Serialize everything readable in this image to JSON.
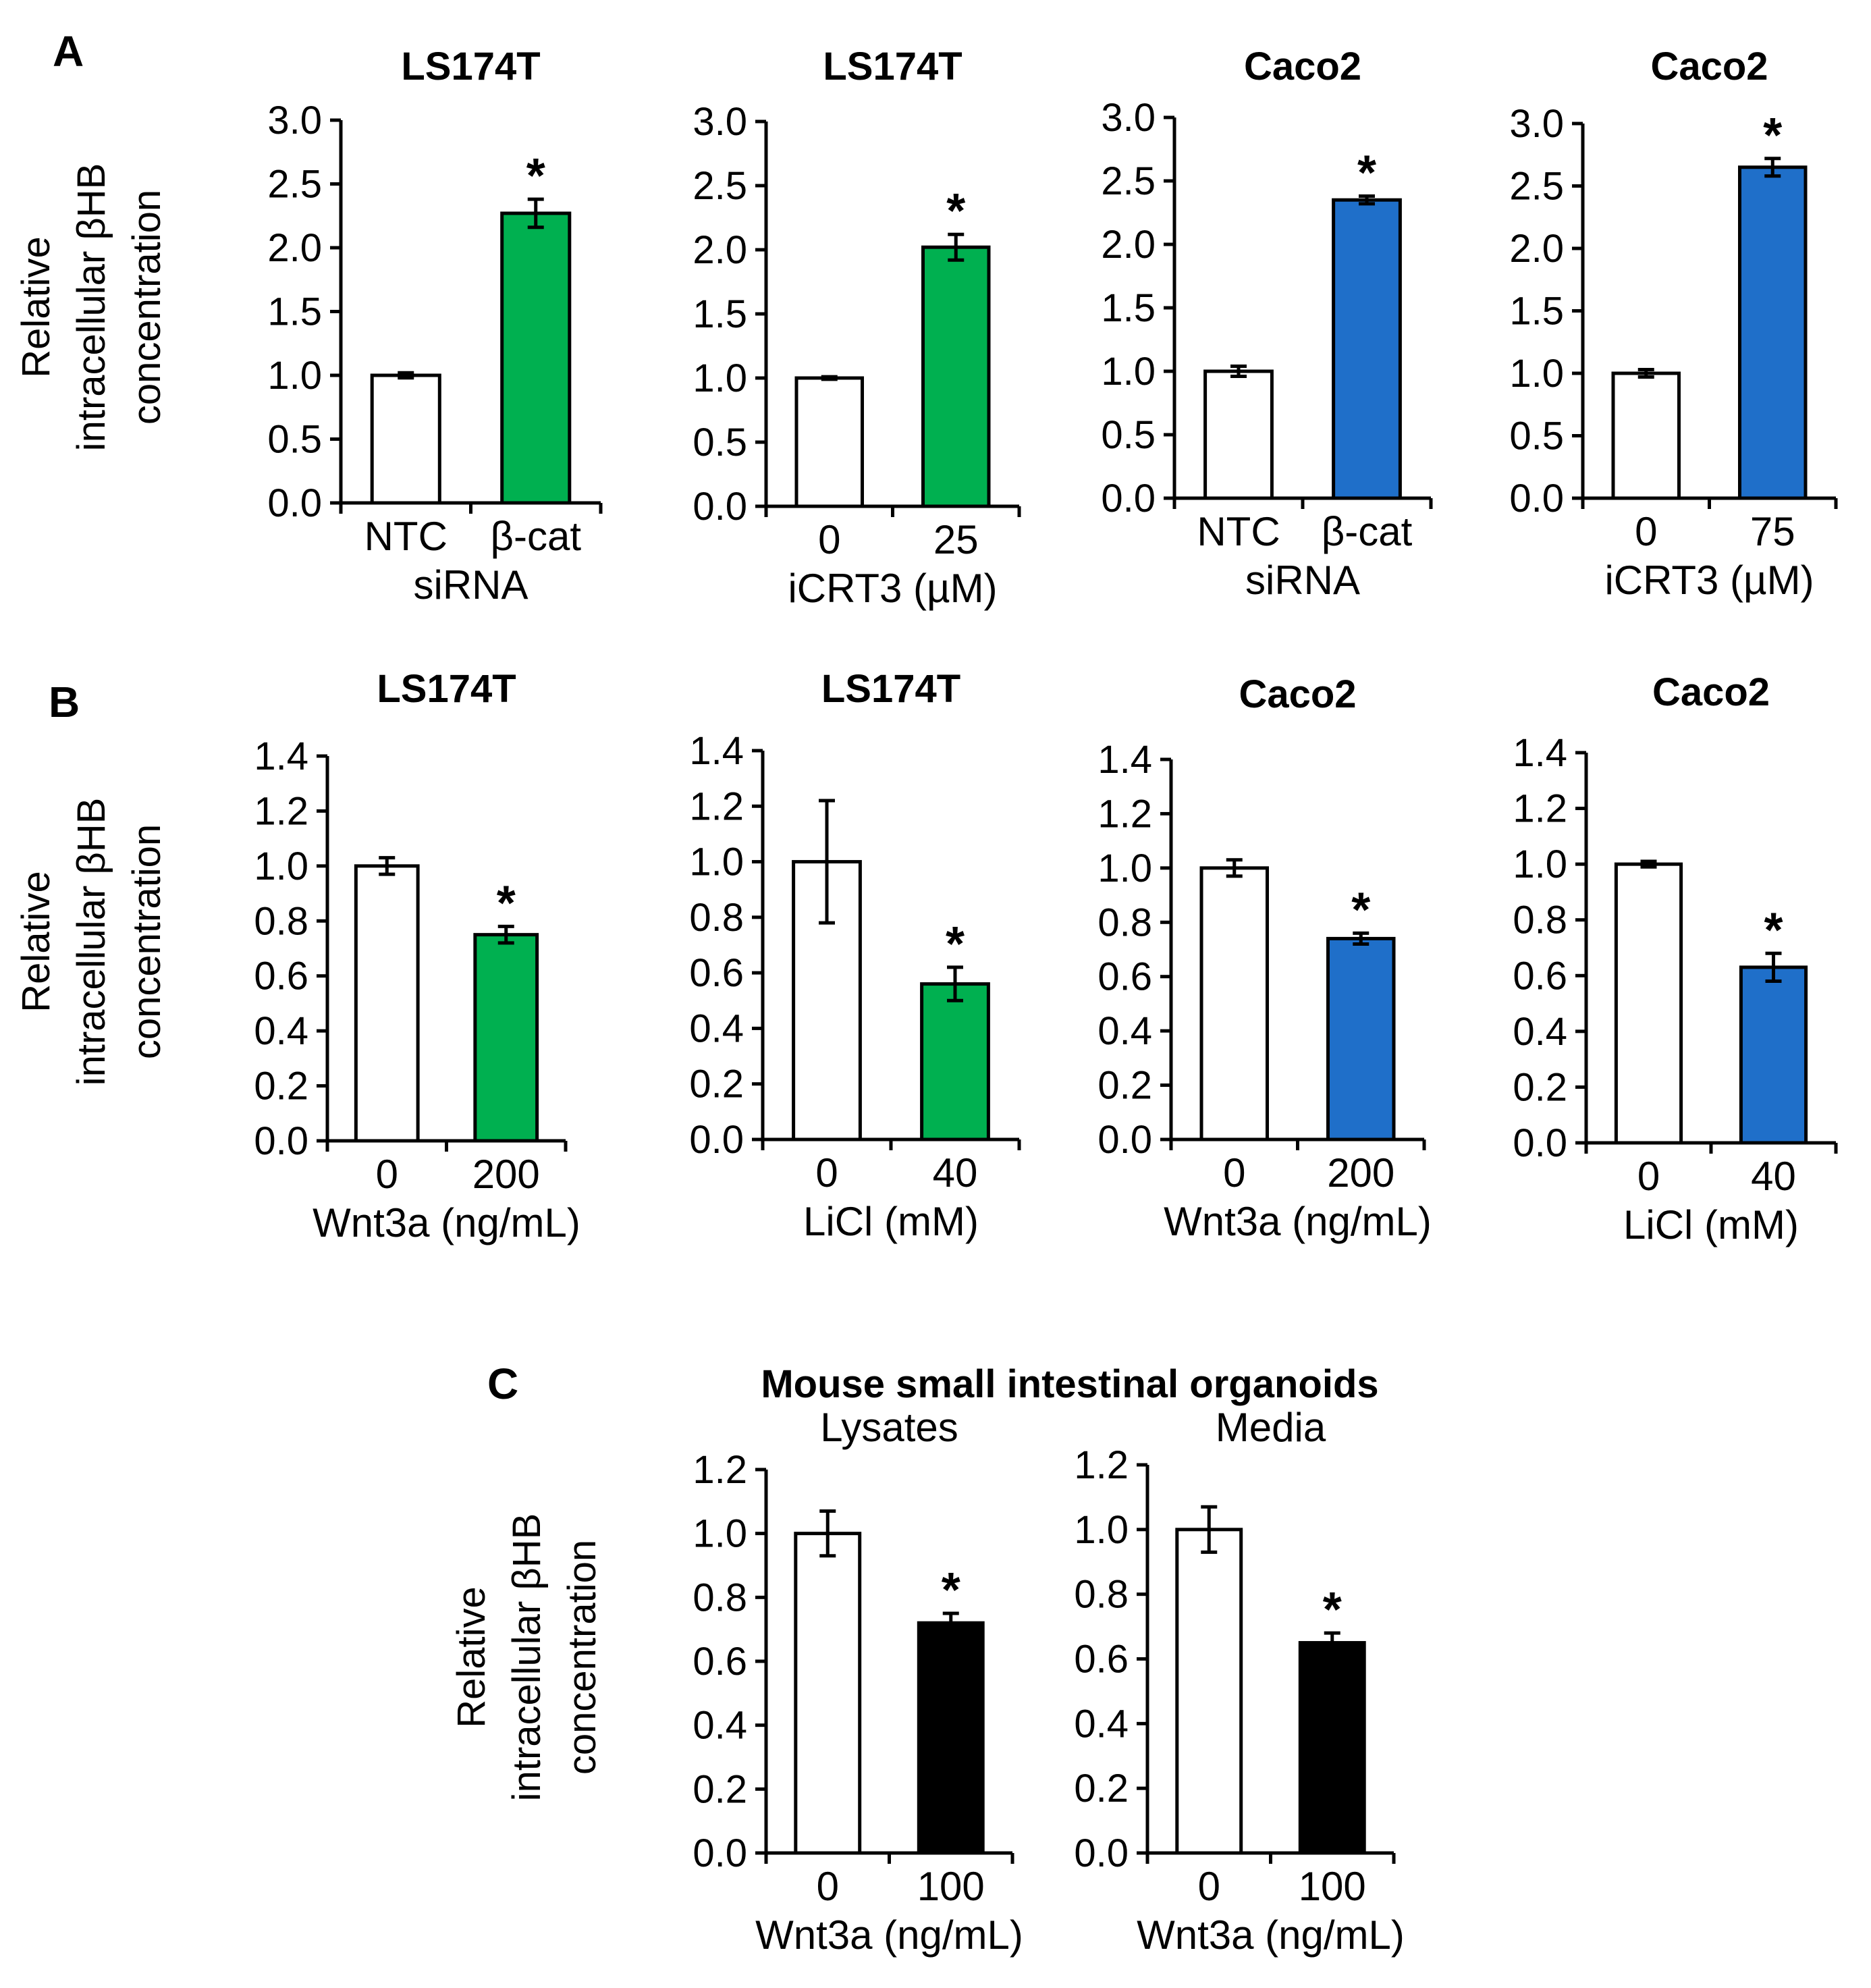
{
  "panels": [
    "A",
    "B",
    "C"
  ],
  "row_c_title": "Mouse small intestinal organoids",
  "colors": {
    "open": "#ffffff",
    "green": "#00b050",
    "blue": "#1f6fc9",
    "black": "#000000"
  },
  "ylabel": [
    "Relative",
    "intracellular βHB",
    "concentration"
  ],
  "chart_data": [
    {
      "id": "A1",
      "type": "bar",
      "title": "LS174T",
      "categories": [
        "NTC",
        "β-cat"
      ],
      "xlabel": "siRNA",
      "values": [
        1.0,
        2.27
      ],
      "errors": [
        0.02,
        0.11
      ],
      "significant": [
        false,
        true
      ],
      "colors": [
        "#ffffff",
        "#00b050"
      ],
      "ylim": [
        0,
        3.0
      ],
      "yticks": [
        "0.0",
        "0.5",
        "1.0",
        "1.5",
        "2.0",
        "2.5",
        "3.0"
      ]
    },
    {
      "id": "A2",
      "type": "bar",
      "title": "LS174T",
      "categories": [
        "0",
        "25"
      ],
      "xlabel": "iCRT3 (µM)",
      "values": [
        1.0,
        2.02
      ],
      "errors": [
        0.01,
        0.1
      ],
      "significant": [
        false,
        true
      ],
      "colors": [
        "#ffffff",
        "#00b050"
      ],
      "ylim": [
        0,
        3.0
      ],
      "yticks": [
        "0.0",
        "0.5",
        "1.0",
        "1.5",
        "2.0",
        "2.5",
        "3.0"
      ]
    },
    {
      "id": "A3",
      "type": "bar",
      "title": "Caco2",
      "categories": [
        "NTC",
        "β-cat"
      ],
      "xlabel": "siRNA",
      "values": [
        1.0,
        2.35
      ],
      "errors": [
        0.04,
        0.03
      ],
      "significant": [
        false,
        true
      ],
      "colors": [
        "#ffffff",
        "#1f6fc9"
      ],
      "ylim": [
        0,
        3.0
      ],
      "yticks": [
        "0.0",
        "0.5",
        "1.0",
        "1.5",
        "2.0",
        "2.5",
        "3.0"
      ]
    },
    {
      "id": "A4",
      "type": "bar",
      "title": "Caco2",
      "categories": [
        "0",
        "75"
      ],
      "xlabel": "iCRT3 (µM)",
      "values": [
        1.0,
        2.65
      ],
      "errors": [
        0.03,
        0.07
      ],
      "significant": [
        false,
        true
      ],
      "colors": [
        "#ffffff",
        "#1f6fc9"
      ],
      "ylim": [
        0,
        3.0
      ],
      "yticks": [
        "0.0",
        "0.5",
        "1.0",
        "1.5",
        "2.0",
        "2.5",
        "3.0"
      ]
    },
    {
      "id": "B1",
      "type": "bar",
      "title": "LS174T",
      "categories": [
        "0",
        "200"
      ],
      "xlabel": "Wnt3a (ng/mL)",
      "values": [
        1.0,
        0.75
      ],
      "errors": [
        0.03,
        0.03
      ],
      "significant": [
        false,
        true
      ],
      "colors": [
        "#ffffff",
        "#00b050"
      ],
      "ylim": [
        0,
        1.4
      ],
      "yticks": [
        "0.0",
        "0.2",
        "0.4",
        "0.6",
        "0.8",
        "1.0",
        "1.2",
        "1.4"
      ]
    },
    {
      "id": "B2",
      "type": "bar",
      "title": "LS174T",
      "categories": [
        "0",
        "40"
      ],
      "xlabel": "LiCl (mM)",
      "values": [
        1.0,
        0.56
      ],
      "errors": [
        0.22,
        0.06
      ],
      "significant": [
        false,
        true
      ],
      "colors": [
        "#ffffff",
        "#00b050"
      ],
      "ylim": [
        0,
        1.4
      ],
      "yticks": [
        "0.0",
        "0.2",
        "0.4",
        "0.6",
        "0.8",
        "1.0",
        "1.2",
        "1.4"
      ]
    },
    {
      "id": "B3",
      "type": "bar",
      "title": "Caco2",
      "categories": [
        "0",
        "200"
      ],
      "xlabel": "Wnt3a (ng/mL)",
      "values": [
        1.0,
        0.74
      ],
      "errors": [
        0.03,
        0.02
      ],
      "significant": [
        false,
        true
      ],
      "colors": [
        "#ffffff",
        "#1f6fc9"
      ],
      "ylim": [
        0,
        1.4
      ],
      "yticks": [
        "0.0",
        "0.2",
        "0.4",
        "0.6",
        "0.8",
        "1.0",
        "1.2",
        "1.4"
      ]
    },
    {
      "id": "B4",
      "type": "bar",
      "title": "Caco2",
      "categories": [
        "0",
        "40"
      ],
      "xlabel": "LiCl (mM)",
      "values": [
        1.0,
        0.63
      ],
      "errors": [
        0.01,
        0.05
      ],
      "significant": [
        false,
        true
      ],
      "colors": [
        "#ffffff",
        "#1f6fc9"
      ],
      "ylim": [
        0,
        1.4
      ],
      "yticks": [
        "0.0",
        "0.2",
        "0.4",
        "0.6",
        "0.8",
        "1.0",
        "1.2",
        "1.4"
      ]
    },
    {
      "id": "C1",
      "type": "bar",
      "title": "Lysates",
      "categories": [
        "0",
        "100"
      ],
      "xlabel": "Wnt3a (ng/mL)",
      "values": [
        1.0,
        0.72
      ],
      "errors": [
        0.07,
        0.03
      ],
      "significant": [
        false,
        true
      ],
      "colors": [
        "#ffffff",
        "#000000"
      ],
      "ylim": [
        0,
        1.2
      ],
      "yticks": [
        "0.0",
        "0.2",
        "0.4",
        "0.6",
        "0.8",
        "1.0",
        "1.2"
      ]
    },
    {
      "id": "C2",
      "type": "bar",
      "title": "Media",
      "categories": [
        "0",
        "100"
      ],
      "xlabel": "Wnt3a (ng/mL)",
      "values": [
        1.0,
        0.65
      ],
      "errors": [
        0.07,
        0.03
      ],
      "significant": [
        false,
        true
      ],
      "colors": [
        "#ffffff",
        "#000000"
      ],
      "ylim": [
        0,
        1.2
      ],
      "yticks": [
        "0.0",
        "0.2",
        "0.4",
        "0.6",
        "0.8",
        "1.0",
        "1.2"
      ]
    }
  ]
}
